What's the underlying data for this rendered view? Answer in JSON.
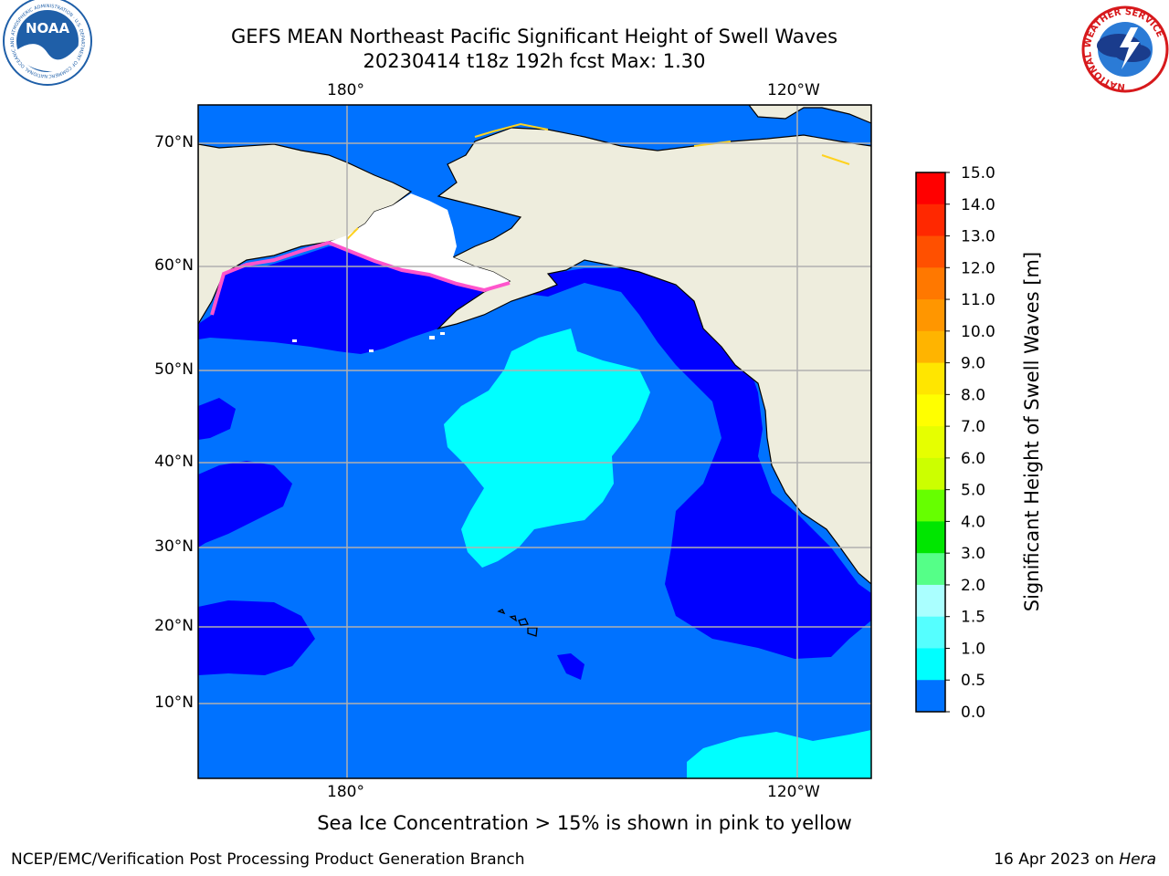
{
  "header": {
    "title_line1": "GEFS MEAN Northeast Pacific Significant Height of Swell Waves",
    "title_line2": "20230414 t18z 192h fcst   Max: 1.30"
  },
  "logos": {
    "left": {
      "text": "NOAA",
      "ring_text": "NATIONAL OCEANIC AND ATMOSPHERIC ADMINISTRATION · U.S. DEPARTMENT OF COMMERCE",
      "color": "#1f5fa8"
    },
    "right": {
      "ring_text": "NATIONAL WEATHER SERVICE",
      "color": "#d7191c"
    }
  },
  "map": {
    "lon_ticks": [
      "180°",
      "120°W"
    ],
    "lat_ticks": [
      "70°N",
      "60°N",
      "50°N",
      "40°N",
      "30°N",
      "20°N",
      "10°N"
    ],
    "colors": {
      "land": "#eeeddd",
      "ice_free_snow": "#ffffff",
      "swell_0_0_5": "#0000ff",
      "swell_0_5_1_0": "#0072ff",
      "swell_1_0_1_5": "#00ffff",
      "ice_pink": "#ff55cc",
      "ice_yellow": "#ffd21e",
      "grid": "#b0b0b0",
      "coast": "#000000"
    }
  },
  "colorbar": {
    "label": "Significant Height of Swell Waves [m]",
    "ticks": [
      "15.0",
      "14.0",
      "13.0",
      "12.0",
      "11.0",
      "10.0",
      "9.0",
      "8.0",
      "7.0",
      "6.0",
      "5.0",
      "4.0",
      "3.0",
      "2.0",
      "1.5",
      "1.0",
      "0.5",
      "0.0"
    ],
    "colors": [
      "#ff0000",
      "#ff2800",
      "#ff5000",
      "#ff7800",
      "#ff9600",
      "#ffb400",
      "#ffe600",
      "#ffff00",
      "#e6ff00",
      "#ccff00",
      "#66ff00",
      "#00e600",
      "#55ff88",
      "#aaffff",
      "#55ffff",
      "#00ffff",
      "#0072ff",
      "#0000ff"
    ]
  },
  "footer": {
    "note": "Sea Ice Concentration > 15% is shown in pink to yellow",
    "branch": "NCEP/EMC/Verification Post Processing Product Generation Branch",
    "date_prefix": "16 Apr 2023 on ",
    "machine": "Hera"
  }
}
